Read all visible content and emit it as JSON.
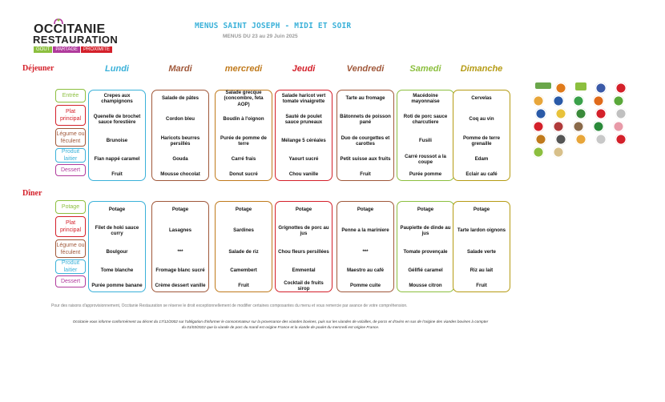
{
  "header": {
    "logo_line1": "OCCITANIE",
    "logo_line2": "RESTAURATION",
    "logo_tags": [
      "GOÛT",
      "PARTAGE",
      "PROXIMITÉ"
    ],
    "title": "MENUS SAINT JOSEPH - MIDI ET SOIR",
    "subtitle": "MENUS DU 23 au 29 Juin 2025"
  },
  "days": [
    "Lundi",
    "Mardi",
    "mercredi",
    "Jeudi",
    "Vendredi",
    "Samedi",
    "Dimanche"
  ],
  "day_colors": [
    "#3ab1d9",
    "#a0583a",
    "#c07a1c",
    "#d4202a",
    "#a0583a",
    "#8cbf3f",
    "#b59b14"
  ],
  "lunch": {
    "label": "Déjeuner",
    "categories": [
      "Entrée",
      "Plat principal",
      "Légume ou féculent",
      "Produit laitier",
      "Dessert"
    ],
    "menu": [
      [
        "Crepes aux champignons",
        "Quenelle de brochet sauce forestière",
        "Brunoise",
        "Flan nappé caramel",
        "Fruit"
      ],
      [
        "Salade de pâtes",
        "Cordon bleu",
        "Haricots beurres persillés",
        "Gouda",
        "Mousse chocolat"
      ],
      [
        "Salade grecque (concombre, feta AOP)",
        "Boudin à l'oignon",
        "Purée de pomme de terre",
        "Carré frais",
        "Donut sucré"
      ],
      [
        "Salade haricot vert tomate vinaigrette",
        "Sauté de poulet sauce pruneaux",
        "Mélange 5 céréales",
        "Yaourt sucré",
        "Chou vanille"
      ],
      [
        "Tarte au fromage",
        "Bâtonnets de poisson pané",
        "Duo de courgettes et carottes",
        "Petit suisse aux fruits",
        "Fruit"
      ],
      [
        "Macédoine mayonnaise",
        "Roti de porc sauce charcutiere",
        "Fusili",
        "Carré roussot a la coupe",
        "Purée pomme"
      ],
      [
        "Cervelas",
        "Coq au vin",
        "Pomme de terre grenaille",
        "Edam",
        "Eclair au café"
      ]
    ]
  },
  "dinner": {
    "label": "Dîner",
    "categories": [
      "Potage",
      "Plat principal",
      "Légume ou féculent",
      "Produit laitier",
      "Dessert"
    ],
    "menu": [
      [
        "Potage",
        "Filet de hoki sauce curry",
        "Boulgour",
        "Tome blanche",
        "Purée pomme banane"
      ],
      [
        "Potage",
        "Lasagnes",
        "***",
        "Fromage blanc sucré",
        "Crème dessert vanille"
      ],
      [
        "Potage",
        "Sardines",
        "Salade de riz",
        "Camembert",
        "Fruit"
      ],
      [
        "Potage",
        "Grignottes de porc au jus",
        "Chou fleurs persillées",
        "Emmental",
        "Cocktail de fruits sirop"
      ],
      [
        "Potage",
        "Penne a la mariniere",
        "***",
        "Maestro au café",
        "Pomme cuite"
      ],
      [
        "Potage",
        "Paupiette de dinde au jus",
        "Tomate provençale",
        "Géllfié caramel",
        "Mousse citron"
      ],
      [
        "Potage",
        "Tarte lardon oignons",
        "Salade verte",
        "Riz au lait",
        "Fruit"
      ]
    ]
  },
  "category_colors": [
    "#8cbf3f",
    "#d4202a",
    "#a0583a",
    "#3ab1d9",
    "#b03a9c"
  ],
  "footer": {
    "note1": "Pour des raisons d'approvisionnement, Occitanie Restauration se réserve le droit exceptionnellement de modifier certaines composantes du menu et vous remercie par avance de votre compréhension.",
    "note2": "Occitanie vous informe conformément au décret du 17/12/2002 sur l'obligation d'informer le consommateur sur la provenance des viandes bovines, puis sur les viandes de volailles, de porcs et d'ovins en sus de l'origine des viandes bovines à compter du 01/03/2022 que la viande de porc du mardi est origine France et la viande de poulet du mercredi est origine France."
  },
  "label_icons": [
    "label-rouge-icon",
    "aop-icon",
    "bio-icon",
    "msc-icon",
    "steak-icon",
    "eggs-icon",
    "peche-icon",
    "vegetable-icon",
    "carrot-icon",
    "leaf-icon",
    "france-icon",
    "cheese-icon",
    "vegetarian-icon",
    "apple-icon",
    "chef-icon",
    "label-icon",
    "meat-icon",
    "pot-icon",
    "igp-icon",
    "pig-icon",
    "burger-icon",
    "ac-icon",
    "cupcake-icon",
    "yogurt-icon",
    "berry-icon",
    "milk-icon",
    "bread-icon"
  ]
}
